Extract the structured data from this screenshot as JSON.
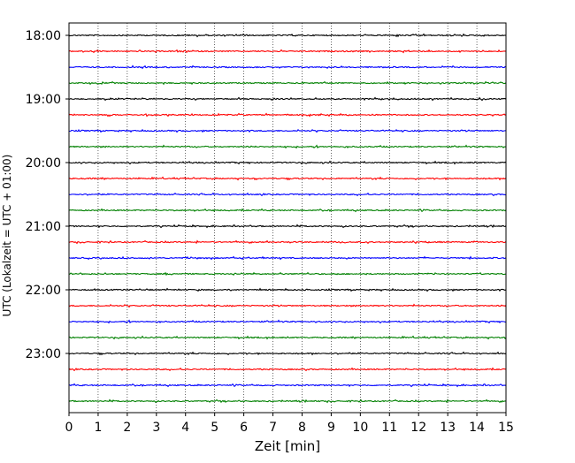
{
  "chart_data": {
    "type": "line",
    "title": "",
    "xlabel": "Zeit  [min]",
    "ylabel": "UTC (Lokalzeit = UTC + 01:00)",
    "xlim": [
      0,
      15
    ],
    "x_ticks": [
      "0",
      "1",
      "2",
      "3",
      "4",
      "5",
      "6",
      "7",
      "8",
      "9",
      "10",
      "11",
      "12",
      "13",
      "14",
      "15"
    ],
    "y_ticks": [
      "18:00",
      "19:00",
      "20:00",
      "21:00",
      "22:00",
      "23:00"
    ],
    "grid": "x-dotted",
    "legend": "none",
    "row_minutes": 15,
    "start_time": "18:00",
    "end_time": "24:00",
    "colors": [
      "#000000",
      "#ff0000",
      "#0000ff",
      "#008000"
    ]
  }
}
